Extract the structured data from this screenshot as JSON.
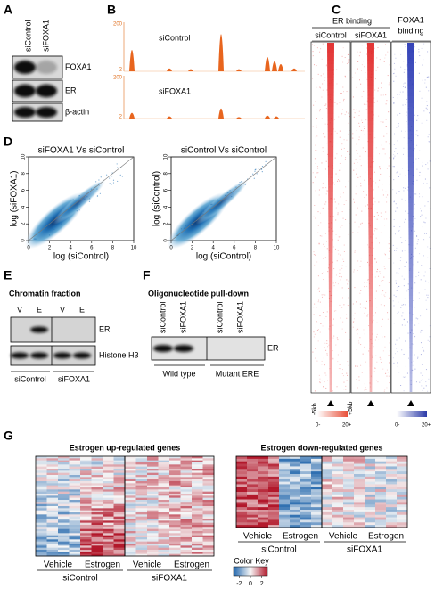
{
  "panels": {
    "A": {
      "label": "A",
      "columns": [
        "siControl",
        "siFOXA1"
      ],
      "rows": [
        "FOXA1",
        "ER",
        "β-actin"
      ]
    },
    "B": {
      "label": "B",
      "tracks": [
        {
          "name": "siControl",
          "ticks": [
            200,
            2
          ]
        },
        {
          "name": "siFOXA1",
          "ticks": [
            200,
            2
          ]
        }
      ]
    },
    "C": {
      "label": "C",
      "header": "ER binding",
      "columns": [
        "siControl",
        "siFOXA1"
      ],
      "foxa1_header": [
        "FOXA1",
        "binding"
      ],
      "flank_left": "-5kb",
      "flank_right": "+5kb",
      "scales": [
        {
          "min": "0-",
          "max": "20+"
        },
        {
          "min": "0-",
          "max": "20+"
        }
      ]
    },
    "D": {
      "label": "D",
      "plots": [
        {
          "title": "siFOXA1 Vs siControl",
          "xlabel": "log (siControl)",
          "ylabel": "log (siFOXA1)",
          "xlim": [
            0,
            10
          ],
          "ylim": [
            0,
            10
          ],
          "xticks": [
            0,
            2,
            4,
            6,
            8,
            10
          ],
          "yticks": [
            0,
            2,
            4,
            6,
            8,
            10
          ]
        },
        {
          "title": "siControl Vs siControl",
          "xlabel": "log (siControl)",
          "ylabel": "log (siControl)",
          "xlim": [
            0,
            10
          ],
          "ylim": [
            0,
            10
          ],
          "xticks": [
            0,
            2,
            4,
            6,
            8,
            10
          ],
          "yticks": [
            0,
            2,
            4,
            6,
            8,
            10
          ]
        }
      ]
    },
    "E": {
      "label": "E",
      "title": "Chromatin fraction",
      "lanes": [
        "V",
        "E",
        "V",
        "E"
      ],
      "rows": [
        "ER",
        "Histone H3"
      ],
      "groups": [
        "siControl",
        "siFOXA1"
      ]
    },
    "F": {
      "label": "F",
      "title": "Oligonucleotide pull-down",
      "lanes": [
        "siControl",
        "siFOXA1",
        "siControl",
        "siFOXA1"
      ],
      "row": "ER",
      "groups": [
        "Wild type",
        "Mutant ERE"
      ]
    },
    "G": {
      "label": "G",
      "heatmaps": [
        {
          "title": "Estrogen up-regulated genes",
          "conditions": [
            "Vehicle",
            "Estrogen",
            "Vehicle",
            "Estrogen"
          ],
          "groups": [
            "siControl",
            "siFOXA1"
          ]
        },
        {
          "title": "Estrogen down-regulated genes",
          "conditions": [
            "Vehicle",
            "Estrogen",
            "Vehicle",
            "Estrogen"
          ],
          "groups": [
            "siControl",
            "siFOXA1"
          ]
        }
      ],
      "color_key": {
        "title": "Color Key",
        "lim": [
          -3,
          3
        ],
        "ticks": [
          -2,
          0,
          2
        ]
      }
    }
  }
}
